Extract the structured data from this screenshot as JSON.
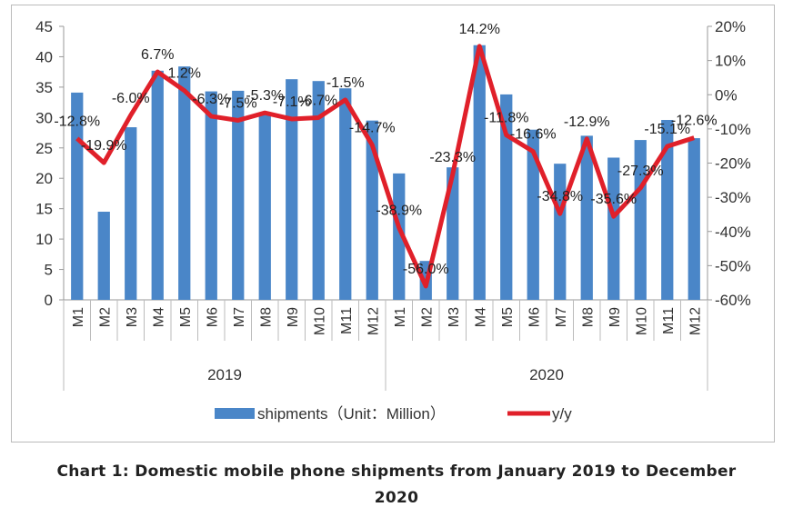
{
  "chart_data": {
    "type": "bar+line",
    "caption": [
      "Chart 1: Domestic mobile phone shipments from January 2019 to December",
      "2020"
    ],
    "categories": [
      "M1",
      "M2",
      "M3",
      "M4",
      "M5",
      "M6",
      "M7",
      "M8",
      "M9",
      "M10",
      "M11",
      "M12",
      "M1",
      "M2",
      "M3",
      "M4",
      "M5",
      "M6",
      "M7",
      "M8",
      "M9",
      "M10",
      "M11",
      "M12"
    ],
    "groups": [
      {
        "label": "2019",
        "count": 12
      },
      {
        "label": "2020",
        "count": 12
      }
    ],
    "left_axis": {
      "ylim": [
        0,
        45
      ],
      "ticks": [
        "0",
        "5",
        "10",
        "15",
        "20",
        "25",
        "30",
        "35",
        "40",
        "45"
      ]
    },
    "right_axis": {
      "ylim": [
        -60,
        20
      ],
      "ticks": [
        "-60%",
        "-50%",
        "-40%",
        "-30%",
        "-20%",
        "-10%",
        "0%",
        "10%",
        "20%"
      ]
    },
    "series": [
      {
        "name": "shipments（Unit：Million）",
        "kind": "bar",
        "axis": "left",
        "color": "#4a86c8",
        "values": [
          34.1,
          14.5,
          28.4,
          37.7,
          38.4,
          34.3,
          34.4,
          30.8,
          36.3,
          36.0,
          34.8,
          29.5,
          20.8,
          6.4,
          21.8,
          41.9,
          33.8,
          28.0,
          22.4,
          27.0,
          23.4,
          26.3,
          29.6,
          26.6
        ]
      },
      {
        "name": "y/y",
        "kind": "line",
        "axis": "right",
        "color": "#e0202a",
        "values": [
          -12.8,
          -19.9,
          -6.0,
          6.7,
          1.2,
          -6.3,
          -7.5,
          -5.3,
          -7.1,
          -6.7,
          -1.5,
          -14.7,
          -38.9,
          -56.0,
          -23.3,
          14.2,
          -11.8,
          -16.6,
          -34.8,
          -12.9,
          -35.6,
          -27.3,
          -15.1,
          -12.6
        ],
        "labels": [
          "-12.8%",
          "-19.9%",
          "-6.0%",
          "6.7%",
          "1.2%",
          "-6.3%",
          "-7.5%",
          "-5.3%",
          "-7.1%",
          "-6.7%",
          "-1.5%",
          "-14.7%",
          "-38.9%",
          "-56.0%",
          "-23.3%",
          "14.2%",
          "-11.8%",
          "-16.6%",
          "-34.8%",
          "-12.9%",
          "-35.6%",
          "-27.3%",
          "-15.1%",
          "-12.6%"
        ]
      }
    ],
    "grid": false,
    "legend": "bottom"
  }
}
